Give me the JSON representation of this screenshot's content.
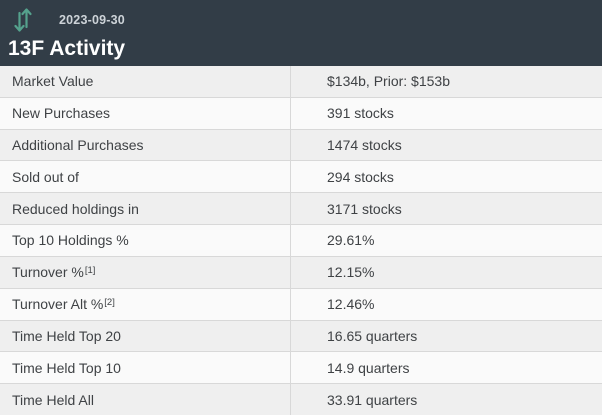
{
  "header": {
    "date": "2023-09-30",
    "title": "13F Activity",
    "icon": "up-down-arrows-icon"
  },
  "table": {
    "rows": [
      {
        "label": "Market Value",
        "value": "$134b, Prior: $153b"
      },
      {
        "label": "New Purchases",
        "value": "391 stocks"
      },
      {
        "label": "Additional Purchases",
        "value": "1474 stocks"
      },
      {
        "label": "Sold out of",
        "value": "294 stocks"
      },
      {
        "label": "Reduced holdings in",
        "value": "3171 stocks"
      },
      {
        "label": "Top 10 Holdings %",
        "value": "29.61%"
      },
      {
        "label": "Turnover %",
        "sup": "[1]",
        "value": "12.15%"
      },
      {
        "label": "Turnover Alt %",
        "sup": "[2]",
        "value": "12.46%"
      },
      {
        "label": "Time Held Top 20",
        "value": "16.65 quarters"
      },
      {
        "label": "Time Held Top 10",
        "value": "14.9 quarters"
      },
      {
        "label": "Time Held All",
        "value": "33.91 quarters"
      }
    ]
  },
  "colors": {
    "header_bg": "#323d47",
    "accent": "#55a28d",
    "row_odd_bg": "#efefef",
    "row_even_bg": "#fafafa",
    "border": "#d8d8d8",
    "text": "#3f4245",
    "date_text": "#cdd3d8",
    "title_text": "#ffffff"
  }
}
